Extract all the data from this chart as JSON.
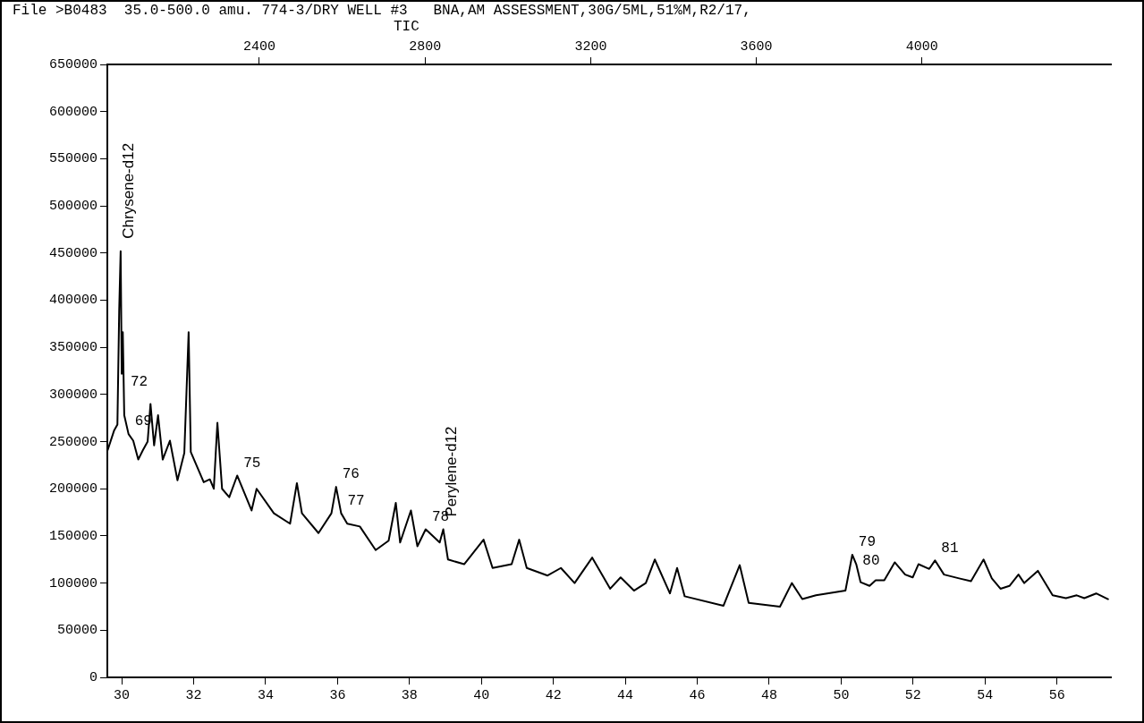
{
  "chart_data": {
    "type": "line",
    "title": "File >B0483  35.0-500.0 amu. 774-3/DRY WELL #3   BNA,AM ASSESSMENT,30G/5ML,51%M,R2/17,",
    "subtitle": "TIC",
    "xlim": [
      29.6,
      57.5
    ],
    "xticks": [
      30,
      32,
      34,
      36,
      38,
      40,
      42,
      44,
      46,
      48,
      50,
      52,
      54,
      56
    ],
    "ylim": [
      0,
      650000
    ],
    "yticks": [
      0,
      50000,
      100000,
      150000,
      200000,
      250000,
      300000,
      350000,
      400000,
      450000,
      500000,
      550000,
      600000,
      650000
    ],
    "x2lim": [
      2033,
      4456
    ],
    "x2ticks": [
      2400,
      2800,
      3200,
      3600,
      4000
    ],
    "series": [
      {
        "color": "#000000",
        "x": [
          29.61,
          29.79,
          29.88,
          29.93,
          29.97,
          30.0,
          30.03,
          30.07,
          30.19,
          30.32,
          30.46,
          30.59,
          30.72,
          30.8,
          30.9,
          31.01,
          31.14,
          31.34,
          31.55,
          31.74,
          31.86,
          31.92,
          32.28,
          32.45,
          32.56,
          32.66,
          32.79,
          32.99,
          33.21,
          33.61,
          33.75,
          34.23,
          34.68,
          34.87,
          35.01,
          35.47,
          35.83,
          35.96,
          36.1,
          36.27,
          36.62,
          37.06,
          37.42,
          37.62,
          37.74,
          38.04,
          38.22,
          38.45,
          38.84,
          38.94,
          39.07,
          39.52,
          40.06,
          40.31,
          40.84,
          41.05,
          41.26,
          41.84,
          42.21,
          42.59,
          43.08,
          43.58,
          43.87,
          44.24,
          44.57,
          44.82,
          45.24,
          45.44,
          45.65,
          46.73,
          47.18,
          47.43,
          48.3,
          48.63,
          48.92,
          49.3,
          50.12,
          50.31,
          50.42,
          50.54,
          50.79,
          50.96,
          51.2,
          51.49,
          51.78,
          51.99,
          52.15,
          52.45,
          52.61,
          52.86,
          53.28,
          53.61,
          53.96,
          54.19,
          54.43,
          54.68,
          54.93,
          55.09,
          55.47,
          55.88,
          56.25,
          56.55,
          56.76,
          57.09,
          57.42
        ],
        "values": [
          241000,
          262000,
          268000,
          390000,
          452000,
          322000,
          366000,
          278000,
          258000,
          251000,
          231000,
          241000,
          250000,
          290000,
          246000,
          278000,
          231000,
          251000,
          209000,
          238000,
          366000,
          239000,
          207000,
          210000,
          200000,
          270000,
          200000,
          191000,
          214000,
          177000,
          200000,
          174000,
          163000,
          206000,
          174000,
          153000,
          174000,
          202000,
          174000,
          163000,
          160000,
          135000,
          145000,
          185000,
          143000,
          177000,
          139000,
          157000,
          143000,
          157000,
          125000,
          120000,
          146000,
          116000,
          120000,
          146000,
          116000,
          108000,
          116000,
          100000,
          127000,
          94000,
          106000,
          92000,
          100000,
          125000,
          89000,
          116000,
          86000,
          76000,
          119000,
          79000,
          75000,
          100000,
          83000,
          87000,
          92000,
          130000,
          120000,
          101000,
          97000,
          103000,
          103000,
          122000,
          109000,
          106000,
          120000,
          115000,
          124000,
          109000,
          105000,
          102000,
          125000,
          105000,
          94000,
          97000,
          109000,
          100000,
          113000,
          87000,
          84000,
          87000,
          84000,
          89000,
          83000
        ]
      }
    ],
    "annotations": [
      {
        "text": "Chrysene-d12",
        "x": 29.97,
        "y": 452000
      },
      {
        "text": "72",
        "x": 30.07,
        "y": 300000
      },
      {
        "text": "69",
        "x": 30.19,
        "y": 258000
      },
      {
        "text": "75",
        "x": 33.21,
        "y": 214000
      },
      {
        "text": "76",
        "x": 35.96,
        "y": 202000
      },
      {
        "text": "77",
        "x": 36.1,
        "y": 174000
      },
      {
        "text": "78",
        "x": 38.45,
        "y": 157000
      },
      {
        "text": "Perylene-d12",
        "x": 38.94,
        "y": 157000
      },
      {
        "text": "79",
        "x": 50.31,
        "y": 130000
      },
      {
        "text": "80",
        "x": 50.42,
        "y": 110000
      },
      {
        "text": "81",
        "x": 52.61,
        "y": 124000
      }
    ]
  }
}
